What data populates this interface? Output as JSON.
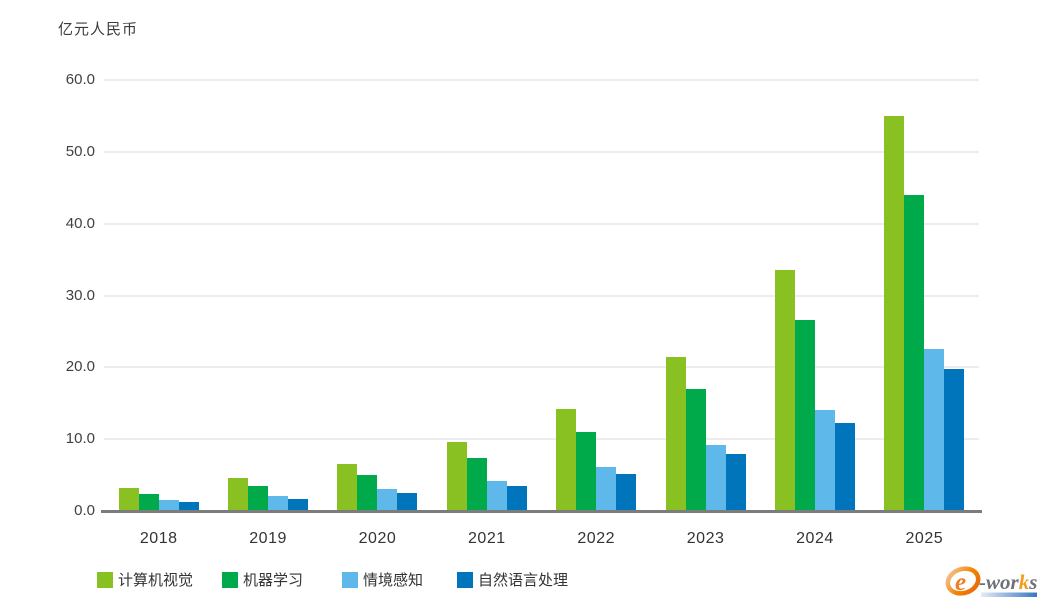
{
  "unit_label": "亿元人民币",
  "chart_data": {
    "type": "bar",
    "title": "",
    "ylabel": "亿元人民币",
    "xlabel": "",
    "categories": [
      "2018",
      "2019",
      "2020",
      "2021",
      "2022",
      "2023",
      "2024",
      "2025"
    ],
    "series": [
      {
        "key": "computer-vision",
        "name": "计算机视觉",
        "color": "#8ac122",
        "values": [
          3.2,
          4.6,
          6.6,
          9.6,
          14.2,
          21.5,
          33.6,
          55.0
        ]
      },
      {
        "key": "machine-learning",
        "name": "机器学习",
        "color": "#00a94a",
        "values": [
          2.4,
          3.5,
          5.0,
          7.4,
          11.0,
          17.0,
          26.6,
          44.0
        ]
      },
      {
        "key": "context-awareness",
        "name": "情境感知",
        "color": "#5fb8ea",
        "values": [
          1.5,
          2.1,
          3.0,
          4.2,
          6.1,
          9.2,
          14.1,
          22.6
        ]
      },
      {
        "key": "nlp",
        "name": "自然语言处理",
        "color": "#0075bc",
        "values": [
          1.2,
          1.7,
          2.5,
          3.5,
          5.2,
          7.9,
          12.2,
          19.7
        ]
      }
    ],
    "ylim": [
      0,
      60
    ],
    "ytick_step": 10,
    "ytick_labels": [
      "0.0",
      "10.0",
      "20.0",
      "30.0",
      "40.0",
      "50.0",
      "60.0"
    ],
    "grid": true,
    "legend_position": "bottom"
  },
  "logo": {
    "part_e": "e",
    "part_mid": "-wor",
    "part_k": "k",
    "part_s": "s"
  }
}
